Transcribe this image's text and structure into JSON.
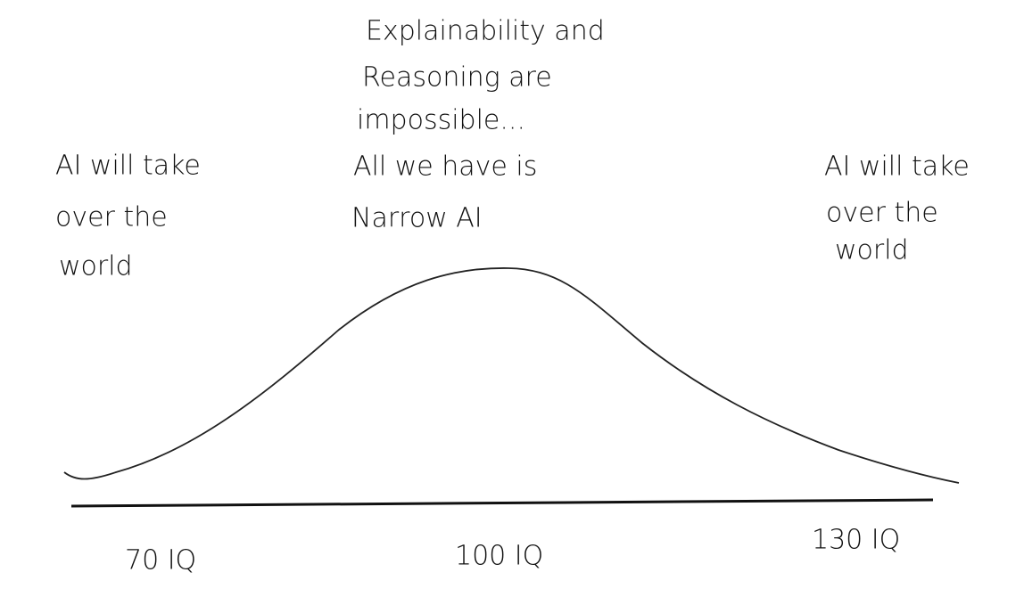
{
  "annotations": {
    "left": {
      "lines": [
        "AI will take",
        "over the",
        "world"
      ]
    },
    "center_top": {
      "lines": [
        "Explainability and",
        "Reasoning are",
        "impossible..."
      ]
    },
    "center": {
      "lines": [
        "All we have is",
        "Narrow AI"
      ]
    },
    "right": {
      "lines": [
        "AI will take",
        "over the",
        "world"
      ]
    }
  },
  "axis_labels": [
    "70 IQ",
    "100 IQ",
    "130 IQ"
  ]
}
